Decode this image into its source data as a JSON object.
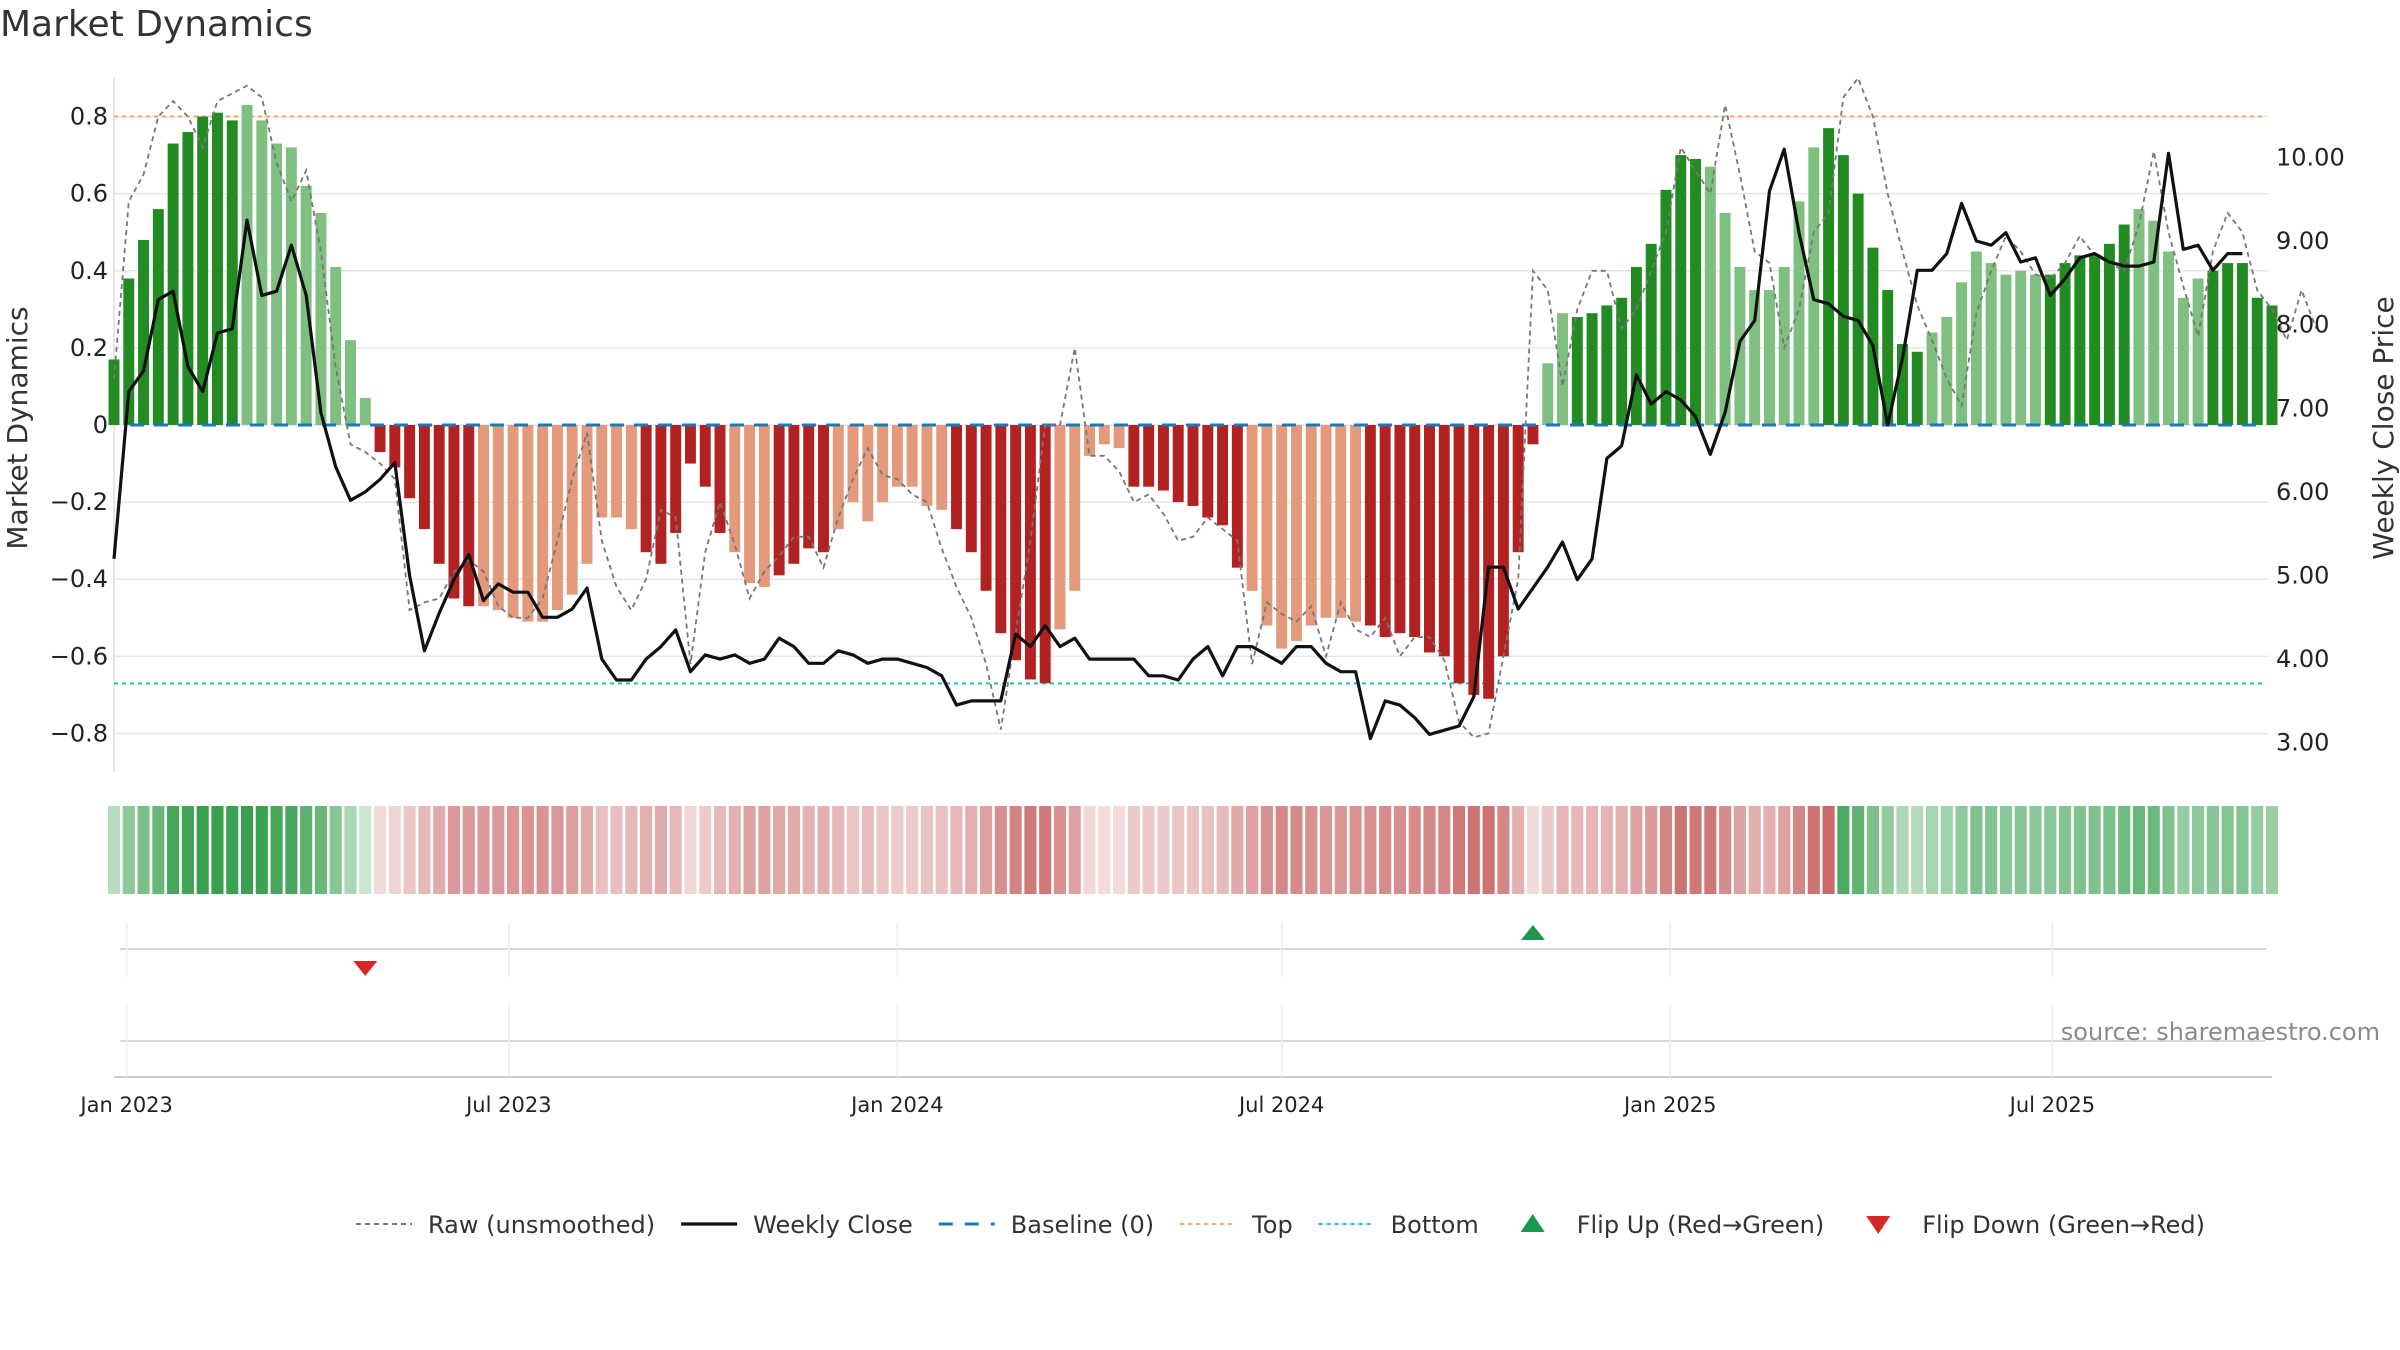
{
  "title": "Market Dynamics",
  "source": "source: sharemaestro.com",
  "colors": {
    "green_dark": "#228b22",
    "green_light": "#7fbf7f",
    "red_dark": "#b22222",
    "red_light": "#e39a7c",
    "close_line": "#111111",
    "raw_line": "#777777",
    "baseline": "#1f77b4",
    "top_line": "#f4a460",
    "bottom_line": "#17becf",
    "flip_up": "#1a9850",
    "flip_down": "#d62728"
  },
  "chart_data": {
    "type": "bar",
    "title": "Market Dynamics",
    "ylabel": "Market Dynamics",
    "y2label": "Weekly Close Price",
    "ylim": [
      -0.9,
      0.9
    ],
    "y2lim": [
      2.65,
      10.95
    ],
    "yticks": [
      -0.8,
      -0.6,
      -0.4,
      -0.2,
      0,
      0.2,
      0.4,
      0.6,
      0.8
    ],
    "ytick_labels": [
      "−0.8",
      "−0.6",
      "−0.4",
      "−0.2",
      "0",
      "0.2",
      "0.4",
      "0.6",
      "0.8"
    ],
    "y2ticks": [
      3,
      4,
      5,
      6,
      7,
      8,
      9,
      10
    ],
    "y2tick_labels": [
      "3.00",
      "4.00",
      "5.00",
      "6.00",
      "7.00",
      "8.00",
      "9.00",
      "10.00"
    ],
    "x_start": "2022-12-26",
    "x_end": "2025-10-13",
    "xticks": [
      {
        "date": "2023-01-01",
        "label": "Jan 2023"
      },
      {
        "date": "2023-07-01",
        "label": "Jul 2023"
      },
      {
        "date": "2024-01-01",
        "label": "Jan 2024"
      },
      {
        "date": "2024-07-01",
        "label": "Jul 2024"
      },
      {
        "date": "2025-01-01",
        "label": "Jan 2025"
      },
      {
        "date": "2025-07-01",
        "label": "Jul 2025"
      }
    ],
    "first_week": "2022-12-26",
    "reference_lines": {
      "top": 0.8,
      "bottom": -0.67,
      "baseline": 0
    },
    "bars": [
      0.17,
      0.38,
      0.48,
      0.56,
      0.73,
      0.76,
      0.8,
      0.81,
      0.79,
      0.83,
      0.79,
      0.73,
      0.72,
      0.62,
      0.55,
      0.41,
      0.22,
      0.07,
      -0.07,
      -0.11,
      -0.19,
      -0.27,
      -0.36,
      -0.45,
      -0.47,
      -0.47,
      -0.48,
      -0.5,
      -0.51,
      -0.51,
      -0.48,
      -0.44,
      -0.36,
      -0.24,
      -0.24,
      -0.27,
      -0.33,
      -0.36,
      -0.28,
      -0.1,
      -0.16,
      -0.28,
      -0.33,
      -0.41,
      -0.42,
      -0.39,
      -0.36,
      -0.32,
      -0.33,
      -0.27,
      -0.2,
      -0.25,
      -0.2,
      -0.16,
      -0.16,
      -0.21,
      -0.22,
      -0.27,
      -0.33,
      -0.43,
      -0.54,
      -0.61,
      -0.66,
      -0.67,
      -0.53,
      -0.43,
      -0.08,
      -0.05,
      -0.06,
      -0.16,
      -0.16,
      -0.17,
      -0.2,
      -0.21,
      -0.24,
      -0.26,
      -0.37,
      -0.43,
      -0.52,
      -0.58,
      -0.56,
      -0.52,
      -0.5,
      -0.5,
      -0.51,
      -0.52,
      -0.55,
      -0.54,
      -0.55,
      -0.59,
      -0.6,
      -0.67,
      -0.7,
      -0.71,
      -0.6,
      -0.33,
      -0.05,
      0.16,
      0.29,
      0.28,
      0.29,
      0.31,
      0.33,
      0.41,
      0.47,
      0.61,
      0.7,
      0.69,
      0.67,
      0.55,
      0.41,
      0.35,
      0.35,
      0.41,
      0.58,
      0.72,
      0.77,
      0.7,
      0.6,
      0.46,
      0.35,
      0.21,
      0.19,
      0.24,
      0.28,
      0.37,
      0.45,
      0.42,
      0.39,
      0.4,
      0.39,
      0.39,
      0.42,
      0.44,
      0.44,
      0.47,
      0.52,
      0.56,
      0.53,
      0.45,
      0.33,
      0.38,
      0.4,
      0.42,
      0.42,
      0.33,
      0.31
    ],
    "bar_shades": "dddddddddlllllllll dddddddlllllllllllddddddlllddddlllllllldddddddlllllddddddddllllllllddddddddddddll dddddddddlllllllldddddddllllllllddddddlllllddddddddlllllll",
    "close": [
      5.2,
      7.2,
      7.45,
      8.3,
      8.4,
      7.5,
      7.2,
      7.9,
      7.95,
      9.25,
      8.35,
      8.4,
      8.95,
      8.35,
      6.95,
      6.3,
      5.9,
      6.0,
      6.15,
      6.35,
      5.0,
      4.1,
      4.55,
      4.95,
      5.25,
      4.7,
      4.9,
      4.8,
      4.8,
      4.5,
      4.5,
      4.6,
      4.85,
      4.0,
      3.75,
      3.75,
      4.0,
      4.15,
      4.35,
      3.85,
      4.05,
      4.0,
      4.05,
      3.95,
      4.0,
      4.25,
      4.15,
      3.95,
      3.95,
      4.1,
      4.05,
      3.95,
      4.0,
      4.0,
      3.95,
      3.9,
      3.8,
      3.45,
      3.5,
      3.5,
      3.5,
      4.3,
      4.15,
      4.4,
      4.15,
      4.25,
      4.0,
      4.0,
      4.0,
      4.0,
      3.8,
      3.8,
      3.75,
      4.0,
      4.15,
      3.8,
      4.15,
      4.15,
      4.05,
      3.95,
      4.15,
      4.15,
      3.95,
      3.85,
      3.85,
      3.05,
      3.5,
      3.45,
      3.3,
      3.1,
      3.15,
      3.2,
      3.55,
      5.1,
      5.1,
      4.6,
      4.85,
      5.1,
      5.4,
      4.95,
      5.2,
      6.4,
      6.55,
      7.4,
      7.05,
      7.2,
      7.1,
      6.9,
      6.45,
      6.95,
      7.8,
      8.05,
      9.6,
      10.1,
      9.1,
      8.3,
      8.25,
      8.1,
      8.05,
      7.75,
      6.8,
      7.6,
      8.65,
      8.65,
      8.85,
      9.45,
      9.0,
      8.95,
      9.1,
      8.75,
      8.8,
      8.35,
      8.55,
      8.8,
      8.85,
      8.75,
      8.7,
      8.7,
      8.75,
      10.05,
      8.9,
      8.95,
      8.65,
      8.85,
      8.85
    ],
    "raw": [
      0.12,
      0.58,
      0.65,
      0.8,
      0.84,
      0.8,
      0.72,
      0.84,
      0.86,
      0.88,
      0.85,
      0.68,
      0.58,
      0.66,
      0.45,
      0.15,
      -0.05,
      -0.07,
      -0.1,
      -0.14,
      -0.48,
      -0.46,
      -0.45,
      -0.38,
      -0.35,
      -0.38,
      -0.47,
      -0.5,
      -0.5,
      -0.45,
      -0.3,
      -0.14,
      -0.02,
      -0.3,
      -0.42,
      -0.48,
      -0.4,
      -0.22,
      -0.24,
      -0.62,
      -0.33,
      -0.2,
      -0.31,
      -0.45,
      -0.38,
      -0.34,
      -0.29,
      -0.29,
      -0.37,
      -0.24,
      -0.14,
      -0.06,
      -0.13,
      -0.14,
      -0.18,
      -0.2,
      -0.32,
      -0.42,
      -0.5,
      -0.62,
      -0.79,
      -0.54,
      -0.3,
      0.0,
      0.0,
      0.2,
      -0.08,
      -0.08,
      -0.12,
      -0.2,
      -0.18,
      -0.23,
      -0.3,
      -0.29,
      -0.24,
      -0.27,
      -0.3,
      -0.62,
      -0.46,
      -0.49,
      -0.51,
      -0.47,
      -0.6,
      -0.46,
      -0.53,
      -0.55,
      -0.5,
      -0.6,
      -0.55,
      -0.55,
      -0.61,
      -0.77,
      -0.81,
      -0.8,
      -0.6,
      -0.4,
      0.4,
      0.35,
      0.1,
      0.3,
      0.4,
      0.4,
      0.25,
      0.3,
      0.4,
      0.5,
      0.72,
      0.66,
      0.6,
      0.83,
      0.65,
      0.45,
      0.42,
      0.2,
      0.3,
      0.5,
      0.55,
      0.85,
      0.9,
      0.8,
      0.6,
      0.45,
      0.31,
      0.22,
      0.12,
      0.05,
      0.29,
      0.4,
      0.49,
      0.45,
      0.39,
      0.38,
      0.42,
      0.49,
      0.44,
      0.42,
      0.4,
      0.52,
      0.71,
      0.5,
      0.36,
      0.23,
      0.45,
      0.55,
      0.5,
      0.35,
      0.3,
      0.22,
      0.35,
      0.25
    ],
    "strip": "ggggggggggggggggggr rrrrrrrrrrrrrrrrrrrrrrrrrrrrrrrrrrrrrrrrrrrrrrrrrrrrrrrrrrrrrrrrrrrrrrrrrrrrrrrrrrrrrrrrrrrrrrrrrr ggggggggggggggggggggggggggggggggggggggggggggggggggggggg",
    "flips": [
      {
        "type": "down",
        "date": "2023-04-24",
        "label": "Flip Down (Green→Red)"
      },
      {
        "type": "up",
        "date": "2024-10-28",
        "label": "Flip Up (Red→Green)"
      }
    ],
    "legend": [
      {
        "key": "raw",
        "label": "Raw (unsmoothed)"
      },
      {
        "key": "close",
        "label": "Weekly Close"
      },
      {
        "key": "baseline",
        "label": "Baseline (0)"
      },
      {
        "key": "top",
        "label": "Top"
      },
      {
        "key": "bottom",
        "label": "Bottom"
      },
      {
        "key": "flip_up",
        "label": "Flip Up (Red→Green)"
      },
      {
        "key": "flip_down",
        "label": "Flip Down (Green→Red)"
      }
    ]
  }
}
